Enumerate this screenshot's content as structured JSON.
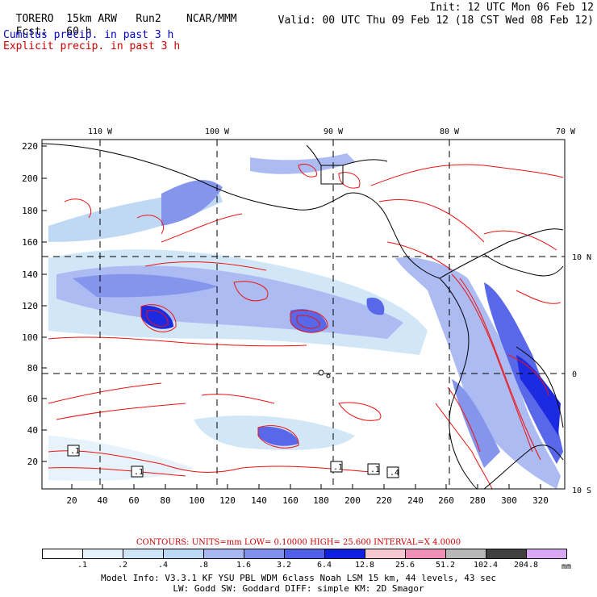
{
  "header": {
    "model": "TORERO",
    "resolution": "15km ARW",
    "run": "Run2",
    "org": "NCAR/MMM",
    "init": "Init: 12 UTC Mon 06 Feb 12",
    "fcst_label": "Fcst:",
    "fcst_hours": "60 h",
    "valid": "Valid: 00 UTC Thu 09 Feb 12 (18 CST Wed 08 Feb 12)",
    "cumulus_label": "Cumulus precip. in past 3 h",
    "explicit_label": "Explicit precip. in past 3 h"
  },
  "map": {
    "top_lon_labels": [
      "110 W",
      "100 W",
      "90 W",
      "80 W",
      "70 W"
    ],
    "right_lat_labels": [
      "10 N",
      "0",
      "10 S"
    ],
    "left_ticks": [
      "220",
      "200",
      "180",
      "160",
      "140",
      "120",
      "100",
      "80",
      "60",
      "40",
      "20"
    ],
    "bottom_ticks": [
      "20",
      "40",
      "60",
      "80",
      "100",
      "120",
      "140",
      "160",
      "180",
      "200",
      "220",
      "240",
      "260",
      "280",
      "300",
      "320"
    ],
    "point_labels": [
      ".1",
      ".1",
      ".1",
      ".1",
      ".4"
    ],
    "colors": {
      "cumulus_contour": "#ee1111",
      "coastline": "#000000",
      "grid_dash": "#000000"
    }
  },
  "legend": {
    "contours": "CONTOURS:  UNITS=mm  LOW= 0.10000      HIGH=  25.600      INTERVAL=X  4.0000",
    "unit": "mm",
    "bins": [
      {
        "color": "#ffffff",
        "label": ".1"
      },
      {
        "color": "#e6f2fb",
        "label": ".2"
      },
      {
        "color": "#cfe6f8",
        "label": ".4"
      },
      {
        "color": "#bcd8f4",
        "label": ".8"
      },
      {
        "color": "#a8b8f2",
        "label": "1.6"
      },
      {
        "color": "#8090ec",
        "label": "3.2"
      },
      {
        "color": "#5060e8",
        "label": "6.4"
      },
      {
        "color": "#1020e0",
        "label": "12.8"
      },
      {
        "color": "#f7c8cf",
        "label": "25.6"
      },
      {
        "color": "#f090b8",
        "label": "51.2"
      },
      {
        "color": "#b8b8b8",
        "label": "102.4"
      },
      {
        "color": "#404040",
        "label": "204.8"
      },
      {
        "color": "#d8a8f4",
        "label": ""
      }
    ]
  },
  "footer": {
    "line1": "Model Info: V3.3.1    KF     YSU PBL   WDM 6class  Noah LSM  15 km,    44 levels,   43 sec",
    "line2": "LW: Godd SW: Goddard DIFF: simple KM: 2D Smagor"
  }
}
